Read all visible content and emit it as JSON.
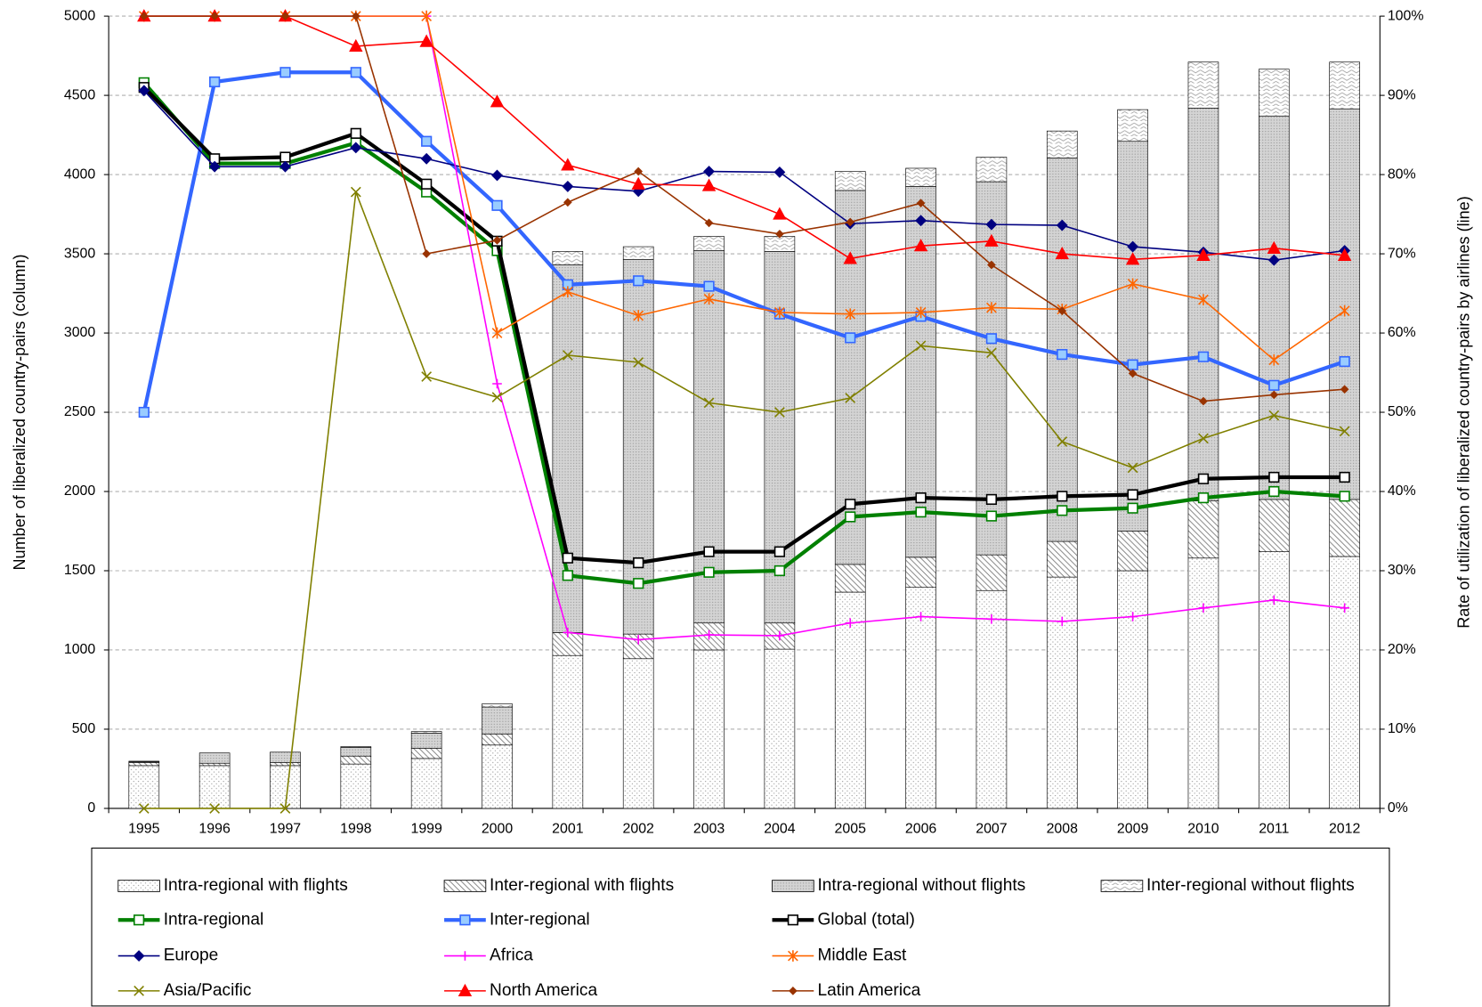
{
  "chart_data": {
    "type": "bar",
    "stacked": true,
    "categories": [
      "1995",
      "1996",
      "1997",
      "1998",
      "1999",
      "2000",
      "2001",
      "2002",
      "2003",
      "2004",
      "2005",
      "2006",
      "2007",
      "2008",
      "2009",
      "2010",
      "2011",
      "2012"
    ],
    "y_label": "Number of liberalized country-pairs (column)",
    "y2_label": "Rate of utilization of liberalized country-pairs by airlines (line)",
    "ylim": [
      0,
      5000
    ],
    "yticks": [
      0,
      500,
      1000,
      1500,
      2000,
      2500,
      3000,
      3500,
      4000,
      4500,
      5000
    ],
    "y2lim": [
      0,
      100
    ],
    "y2ticks": [
      {
        "value": 0,
        "label": "0%"
      },
      {
        "value": 10,
        "label": "10%"
      },
      {
        "value": 20,
        "label": "20%"
      },
      {
        "value": 30,
        "label": "30%"
      },
      {
        "value": 40,
        "label": "40%"
      },
      {
        "value": 50,
        "label": "50%"
      },
      {
        "value": 60,
        "label": "60%"
      },
      {
        "value": 70,
        "label": "70%"
      },
      {
        "value": 80,
        "label": "80%"
      },
      {
        "value": 90,
        "label": "90%"
      },
      {
        "value": 100,
        "label": "100%"
      }
    ],
    "grid": true,
    "legend": "bottom",
    "series": [
      {
        "name": "Intra-regional with flights",
        "type": "bar",
        "pattern": "dots",
        "color": "#000000",
        "values": [
          270,
          270,
          270,
          280,
          315,
          400,
          965,
          945,
          1000,
          1005,
          1365,
          1395,
          1375,
          1460,
          1500,
          1580,
          1620,
          1590
        ]
      },
      {
        "name": "Inter-regional with flights",
        "type": "bar",
        "pattern": "hatch",
        "color": "#000000",
        "values": [
          20,
          15,
          20,
          50,
          65,
          70,
          145,
          155,
          170,
          165,
          175,
          190,
          225,
          225,
          250,
          360,
          330,
          360
        ]
      },
      {
        "name": "Intra-regional without flights",
        "type": "bar",
        "pattern": "gray",
        "color": "#000000",
        "values": [
          5,
          65,
          65,
          55,
          95,
          170,
          2320,
          2365,
          2350,
          2345,
          2360,
          2340,
          2355,
          2420,
          2460,
          2480,
          2420,
          2465
        ]
      },
      {
        "name": "Inter-regional without flights",
        "type": "bar",
        "pattern": "wave",
        "color": "#000000",
        "values": [
          3,
          0,
          0,
          5,
          10,
          20,
          85,
          80,
          90,
          95,
          120,
          115,
          155,
          170,
          200,
          290,
          295,
          295
        ]
      },
      {
        "name": "Intra-regional",
        "type": "line",
        "axis": "y2",
        "color": "#008000",
        "marker": "square",
        "marker_fill": "#ffffff",
        "width": 4,
        "values": [
          91.6,
          81.4,
          81.4,
          84,
          77.8,
          70.4,
          29.4,
          28.4,
          29.8,
          30,
          36.8,
          37.4,
          36.9,
          37.6,
          37.9,
          39.2,
          40,
          39.4
        ]
      },
      {
        "name": "Inter-regional",
        "type": "line",
        "axis": "y2",
        "color": "#3366ff",
        "marker": "square",
        "marker_fill": "#99ccff",
        "width": 4,
        "values": [
          50,
          91.7,
          92.9,
          92.9,
          84.2,
          76.1,
          66.1,
          66.6,
          65.9,
          62.4,
          59.4,
          62.1,
          59.3,
          57.3,
          56,
          57,
          53.4,
          56.4
        ]
      },
      {
        "name": "Global (total)",
        "type": "line",
        "axis": "y2",
        "color": "#000000",
        "marker": "square",
        "marker_fill": "#ffffff",
        "width": 4,
        "values": [
          91,
          82,
          82.2,
          85.2,
          78.8,
          71.6,
          31.6,
          31,
          32.4,
          32.4,
          38.4,
          39.2,
          39,
          39.4,
          39.6,
          41.6,
          41.8,
          41.8
        ]
      },
      {
        "name": "Europe",
        "type": "line",
        "axis": "y2",
        "color": "#000080",
        "marker": "diamond",
        "marker_fill": "#000080",
        "width": 1.5,
        "values": [
          90.6,
          81,
          81,
          83.4,
          82,
          79.9,
          78.5,
          77.9,
          80.4,
          80.3,
          73.8,
          74.2,
          73.7,
          73.6,
          70.9,
          70.2,
          69.2,
          70.4
        ]
      },
      {
        "name": "Africa",
        "type": "line",
        "axis": "y2",
        "color": "#ff00ff",
        "marker": "plus",
        "marker_fill": "#ff00ff",
        "width": 1.5,
        "values": [
          100,
          100,
          100,
          100,
          100,
          53.6,
          22.2,
          21.3,
          21.9,
          21.8,
          23.4,
          24.2,
          23.9,
          23.6,
          24.2,
          25.3,
          26.3,
          25.3
        ]
      },
      {
        "name": "Middle East",
        "type": "line",
        "axis": "y2",
        "color": "#ff6600",
        "marker": "star",
        "marker_fill": "#ff6600",
        "width": 1.5,
        "values": [
          100,
          100,
          100,
          100,
          100,
          60,
          65.2,
          62.2,
          64.3,
          62.6,
          62.4,
          62.6,
          63.2,
          63,
          66.2,
          64.2,
          56.6,
          62.8
        ]
      },
      {
        "name": "Asia/Pacific",
        "type": "line",
        "axis": "y2",
        "color": "#808000",
        "marker": "x",
        "marker_fill": "#808000",
        "width": 1.5,
        "values": [
          0,
          0,
          0,
          77.8,
          54.5,
          51.9,
          57.2,
          56.3,
          51.2,
          50,
          51.8,
          58.4,
          57.5,
          46.3,
          43,
          46.7,
          49.6,
          47.6
        ]
      },
      {
        "name": "North America",
        "type": "line",
        "axis": "y2",
        "color": "#ff0000",
        "marker": "triangle",
        "marker_fill": "#ff0000",
        "width": 1.5,
        "values": [
          100,
          100,
          100,
          96.2,
          96.8,
          89.2,
          81.2,
          78.8,
          78.6,
          75,
          69.4,
          71,
          71.6,
          70,
          69.3,
          69.8,
          70.7,
          69.8
        ]
      },
      {
        "name": "Latin America",
        "type": "line",
        "axis": "y2",
        "color": "#993300",
        "marker": "smalldiamond",
        "marker_fill": "#993300",
        "width": 1.5,
        "values": [
          100,
          100,
          100,
          100,
          70,
          71.7,
          76.5,
          80.4,
          73.9,
          72.5,
          74,
          76.4,
          68.6,
          62.8,
          54.9,
          51.4,
          52.2,
          52.9
        ]
      }
    ]
  }
}
